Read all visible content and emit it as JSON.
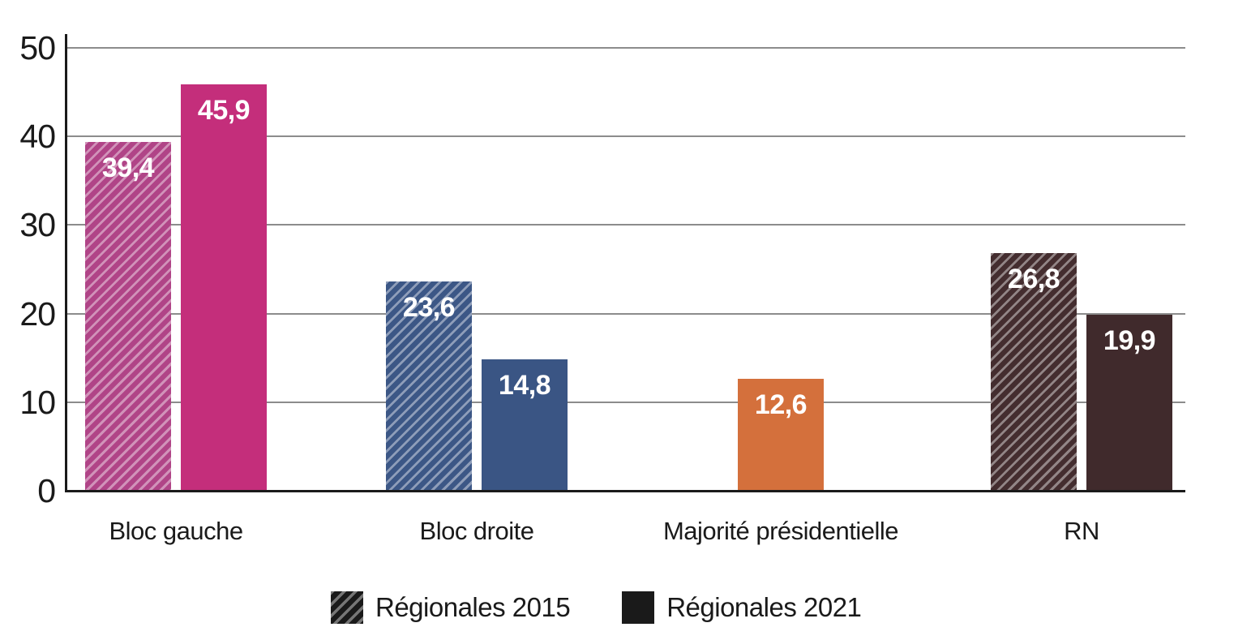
{
  "chart_data": {
    "type": "bar",
    "title": "",
    "categories": [
      "Bloc gauche",
      "Bloc droite",
      "Majorité présidentielle",
      "RN"
    ],
    "series": [
      {
        "name": "Régionales 2015",
        "pattern": "hatched",
        "values": [
          39.4,
          23.6,
          null,
          26.8
        ],
        "labels": [
          "39,4",
          "23,6",
          null,
          "26,8"
        ],
        "colors": [
          "#B04487",
          "#3C5786",
          null,
          "#442D2F"
        ]
      },
      {
        "name": "Régionales 2021",
        "pattern": "solid",
        "values": [
          45.9,
          14.8,
          12.6,
          19.9
        ],
        "labels": [
          "45,9",
          "14,8",
          "12,6",
          "19,9"
        ],
        "colors": [
          "#C42E7B",
          "#3A5584",
          "#D4703C",
          "#402A2C"
        ]
      }
    ],
    "ylim": [
      0,
      50
    ],
    "yticks": [
      0,
      10,
      20,
      30,
      40,
      50
    ],
    "grid": true,
    "legend": {
      "position": "bottom",
      "swatch_color": "#1A1A1A",
      "items": [
        "Régionales 2015",
        "Régionales 2021"
      ]
    },
    "value_label_color": "#FFFFFF",
    "gridline_color": "#8C8C8C",
    "axis_color": "#1A1A1A",
    "text_color": "#1A1A1A"
  }
}
